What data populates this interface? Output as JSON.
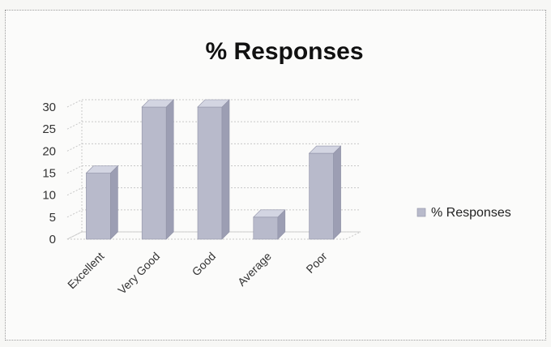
{
  "chart_data": {
    "type": "bar",
    "title": "% Responses",
    "categories": [
      "Excellent",
      "Very Good",
      "Good",
      "Average",
      "Poor"
    ],
    "series": [
      {
        "name": "% Responses",
        "values": [
          15,
          30,
          30,
          5,
          19.5
        ]
      }
    ],
    "xlabel": "",
    "ylabel": "",
    "ylim": [
      0,
      30
    ],
    "yticks": [
      0,
      5,
      10,
      15,
      20,
      25,
      30
    ],
    "grid": true,
    "legend_position": "right",
    "bar_color": "#b8bacb",
    "style": "3d-column"
  }
}
